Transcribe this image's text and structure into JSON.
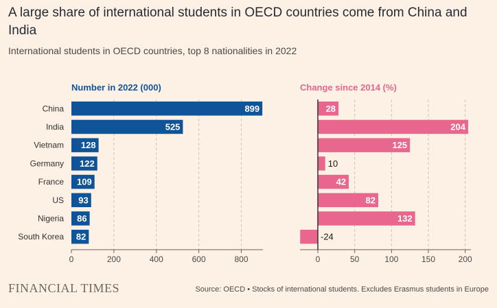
{
  "title": "A large share of international students in OECD countries come from China and India",
  "subtitle": "International students in OECD countries, top 8 nationalities in 2022",
  "footer": {
    "brand": "FINANCIAL TIMES",
    "source": "Source: OECD • Stocks of international students. Excludes Erasmus students in Europe"
  },
  "colors": {
    "number_bar": "#0f5499",
    "change_bar": "#e9678f",
    "number_heading": "#0f5499",
    "change_heading": "#e3678c"
  },
  "chart_data": [
    {
      "type": "bar",
      "orientation": "horizontal",
      "title": "Number in 2022 (000)",
      "categories": [
        "China",
        "India",
        "Vietnam",
        "Germany",
        "France",
        "US",
        "Nigeria",
        "South Korea"
      ],
      "values": [
        899,
        525,
        128,
        122,
        109,
        93,
        86,
        82
      ],
      "xlim": [
        0,
        900
      ],
      "ticks": [
        0,
        200,
        400,
        600,
        800
      ],
      "grid": true
    },
    {
      "type": "bar",
      "orientation": "horizontal",
      "title": "Change since 2014 (%)",
      "categories": [
        "China",
        "India",
        "Vietnam",
        "Germany",
        "France",
        "US",
        "Nigeria",
        "South Korea"
      ],
      "values": [
        28,
        204,
        125,
        10,
        42,
        82,
        132,
        -24
      ],
      "xlim": [
        -24,
        205
      ],
      "ticks": [
        0,
        50,
        100,
        150,
        200
      ],
      "grid": true
    }
  ]
}
